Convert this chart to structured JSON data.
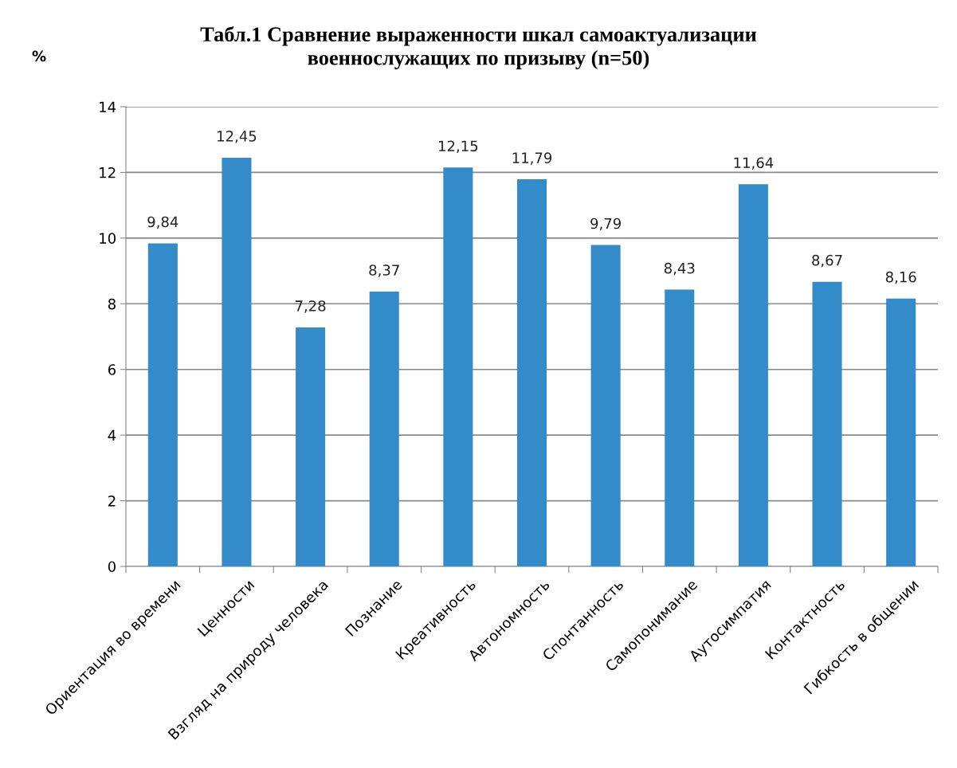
{
  "chart_data": {
    "type": "bar",
    "title": "Табл.1 Сравнение выраженности шкал самоактуализации\nвоеннослужащих по призыву (n=50)",
    "ylabel": "%",
    "categories": [
      "Ориентация во времени",
      "Ценности",
      "Взгляд на природу человека",
      "Познание",
      "Креативность",
      "Автономность",
      "Спонтанность",
      "Самопонимание",
      "Аутосимпатия",
      "Контактность",
      "Гибкость в общении"
    ],
    "values": [
      9.84,
      12.45,
      7.28,
      8.37,
      12.15,
      11.79,
      9.79,
      8.43,
      11.64,
      8.67,
      8.16
    ],
    "value_labels": [
      "9,84",
      "12,45",
      "7,28",
      "8,37",
      "12,15",
      "11,79",
      "9,79",
      "8,43",
      "11,64",
      "8,67",
      "8,16"
    ],
    "color": "#348bc9",
    "ylim": [
      0,
      14
    ],
    "yticks": [
      0,
      2,
      4,
      6,
      8,
      10,
      12,
      14
    ],
    "grid": "y",
    "legend": false
  }
}
